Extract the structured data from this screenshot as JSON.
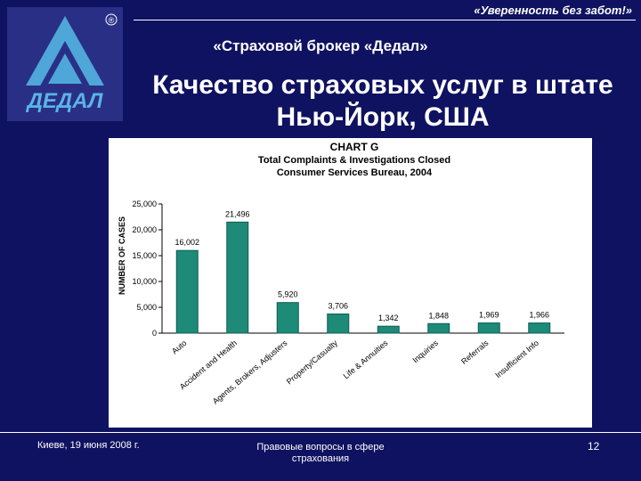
{
  "header": {
    "slogan": "«Уверенность без забот!»",
    "broker": "«Страховой брокер «Дедал»",
    "title_line1": "Качество страховых услуг в штате",
    "title_line2": "Нью-Йорк, США"
  },
  "logo": {
    "text": "ДЕДАЛ",
    "registered": "®"
  },
  "footer": {
    "date": "Киеве, 19 июня 2008 г.",
    "topic": "Правовые вопросы в сфере страхования",
    "page": "12"
  },
  "colors": {
    "background": "#0f1260",
    "bar": "#1e8a78",
    "bar_edge": "#0d5e52"
  },
  "chart_data": {
    "type": "bar",
    "chart_label": "CHART G",
    "title_line1": "Total Complaints & Investigations Closed",
    "title_line2": "Consumer Services Bureau, 2004",
    "ylabel": "NUMBER OF CASES",
    "xlabel": "",
    "ylim": [
      0,
      25000
    ],
    "yticks": [
      0,
      5000,
      10000,
      15000,
      20000,
      25000
    ],
    "ytick_labels": [
      "0",
      "5,000",
      "10,000",
      "15,000",
      "20,000",
      "25,000"
    ],
    "categories": [
      "Auto",
      "Accident and Health",
      "Agents, Brokers, Adjusters",
      "Property/Casualty",
      "Life & Annuities",
      "Inquiries",
      "Referrals",
      "Insufficient Info"
    ],
    "values": [
      16002,
      21496,
      5920,
      3706,
      1342,
      1848,
      1969,
      1966
    ],
    "value_labels": [
      "16,002",
      "21,496",
      "5,920",
      "3,706",
      "1,342",
      "1,848",
      "1,969",
      "1,966"
    ]
  }
}
